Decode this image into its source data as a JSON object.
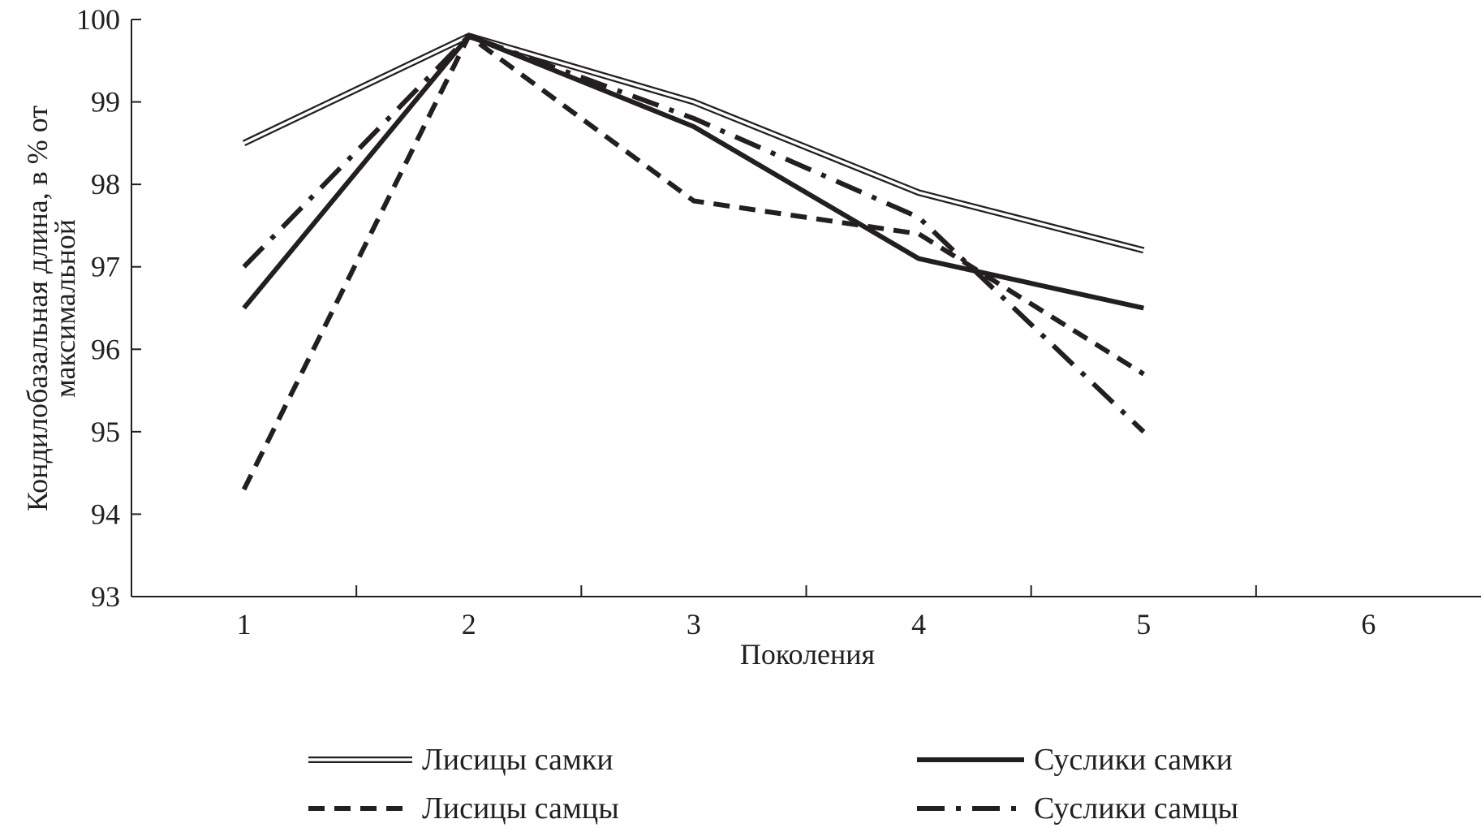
{
  "chart_data": {
    "type": "line",
    "xlabel": "Поколения",
    "ylabel": [
      "Кондилобазальная длина, в % от",
      "максимальной"
    ],
    "x_ticks": [
      "1",
      "2",
      "3",
      "4",
      "5",
      "6"
    ],
    "y_ticks": [
      "93",
      "94",
      "95",
      "96",
      "97",
      "98",
      "99",
      "100"
    ],
    "xlim": [
      0.5,
      6.5
    ],
    "ylim": [
      93,
      100
    ],
    "grid": false,
    "legend_position": "bottom",
    "series": [
      {
        "name": "Лисицы самки",
        "style": "double",
        "x": [
          1,
          2,
          3,
          4,
          5
        ],
        "values": [
          98.5,
          99.8,
          99.0,
          97.9,
          97.2
        ]
      },
      {
        "name": "Суслики самки",
        "style": "solid",
        "x": [
          1,
          2,
          3,
          4,
          5
        ],
        "values": [
          96.5,
          99.8,
          98.7,
          97.1,
          96.5
        ]
      },
      {
        "name": "Лисицы самцы",
        "style": "dashed",
        "x": [
          1,
          2,
          3,
          4,
          5
        ],
        "values": [
          94.3,
          99.8,
          97.8,
          97.4,
          95.7
        ]
      },
      {
        "name": "Суслики самцы",
        "style": "dashdot",
        "x": [
          1,
          2,
          3,
          4,
          5
        ],
        "values": [
          97.0,
          99.8,
          98.8,
          97.6,
          95.0
        ]
      }
    ],
    "colors": {
      "ink": "#231f20",
      "background": "#ffffff"
    }
  }
}
